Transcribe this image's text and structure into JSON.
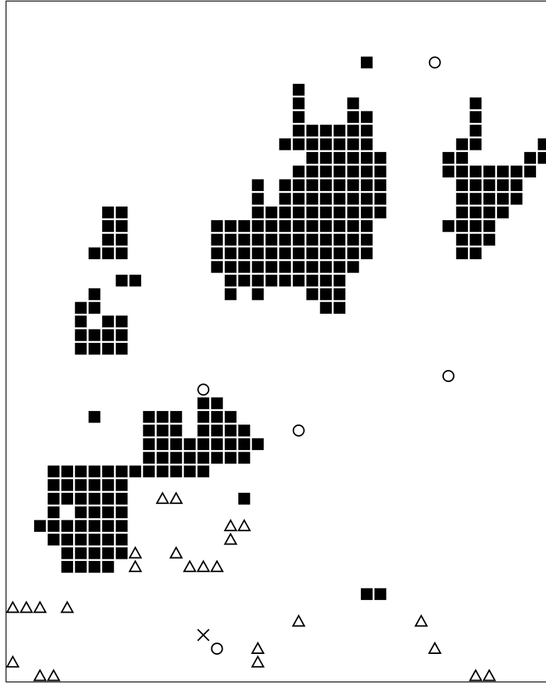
{
  "chart_data": {
    "type": "scatter",
    "title": "",
    "xlabel": "",
    "ylabel": "",
    "grid": false,
    "legend": "none",
    "xlim": [
      0,
      40
    ],
    "ylim": [
      0,
      50
    ],
    "series": [
      {
        "marker": "square",
        "color": "#000000",
        "points": [
          [
            26,
            45
          ],
          [
            21,
            43
          ],
          [
            21,
            42
          ],
          [
            25,
            42
          ],
          [
            34,
            42
          ],
          [
            21,
            41
          ],
          [
            25,
            41
          ],
          [
            26,
            41
          ],
          [
            34,
            41
          ],
          [
            21,
            40
          ],
          [
            22,
            40
          ],
          [
            23,
            40
          ],
          [
            24,
            40
          ],
          [
            25,
            40
          ],
          [
            26,
            40
          ],
          [
            34,
            40
          ],
          [
            20,
            39
          ],
          [
            21,
            39
          ],
          [
            22,
            39
          ],
          [
            23,
            39
          ],
          [
            24,
            39
          ],
          [
            25,
            39
          ],
          [
            26,
            39
          ],
          [
            33,
            39
          ],
          [
            34,
            39
          ],
          [
            39,
            39
          ],
          [
            22,
            38
          ],
          [
            23,
            38
          ],
          [
            24,
            38
          ],
          [
            25,
            38
          ],
          [
            26,
            38
          ],
          [
            27,
            38
          ],
          [
            32,
            38
          ],
          [
            33,
            38
          ],
          [
            38,
            38
          ],
          [
            39,
            38
          ],
          [
            21,
            37
          ],
          [
            22,
            37
          ],
          [
            23,
            37
          ],
          [
            24,
            37
          ],
          [
            25,
            37
          ],
          [
            26,
            37
          ],
          [
            27,
            37
          ],
          [
            32,
            37
          ],
          [
            33,
            37
          ],
          [
            34,
            37
          ],
          [
            35,
            37
          ],
          [
            36,
            37
          ],
          [
            37,
            37
          ],
          [
            38,
            37
          ],
          [
            18,
            36
          ],
          [
            20,
            36
          ],
          [
            21,
            36
          ],
          [
            22,
            36
          ],
          [
            23,
            36
          ],
          [
            24,
            36
          ],
          [
            25,
            36
          ],
          [
            26,
            36
          ],
          [
            27,
            36
          ],
          [
            33,
            36
          ],
          [
            34,
            36
          ],
          [
            35,
            36
          ],
          [
            36,
            36
          ],
          [
            37,
            36
          ],
          [
            18,
            35
          ],
          [
            20,
            35
          ],
          [
            21,
            35
          ],
          [
            22,
            35
          ],
          [
            23,
            35
          ],
          [
            24,
            35
          ],
          [
            25,
            35
          ],
          [
            26,
            35
          ],
          [
            27,
            35
          ],
          [
            33,
            35
          ],
          [
            34,
            35
          ],
          [
            35,
            35
          ],
          [
            36,
            35
          ],
          [
            37,
            35
          ],
          [
            7,
            34
          ],
          [
            8,
            34
          ],
          [
            18,
            34
          ],
          [
            19,
            34
          ],
          [
            20,
            34
          ],
          [
            21,
            34
          ],
          [
            22,
            34
          ],
          [
            23,
            34
          ],
          [
            24,
            34
          ],
          [
            25,
            34
          ],
          [
            26,
            34
          ],
          [
            27,
            34
          ],
          [
            33,
            34
          ],
          [
            34,
            34
          ],
          [
            35,
            34
          ],
          [
            36,
            34
          ],
          [
            7,
            33
          ],
          [
            8,
            33
          ],
          [
            15,
            33
          ],
          [
            16,
            33
          ],
          [
            17,
            33
          ],
          [
            18,
            33
          ],
          [
            19,
            33
          ],
          [
            20,
            33
          ],
          [
            21,
            33
          ],
          [
            22,
            33
          ],
          [
            23,
            33
          ],
          [
            24,
            33
          ],
          [
            25,
            33
          ],
          [
            26,
            33
          ],
          [
            32,
            33
          ],
          [
            33,
            33
          ],
          [
            34,
            33
          ],
          [
            35,
            33
          ],
          [
            7,
            32
          ],
          [
            8,
            32
          ],
          [
            15,
            32
          ],
          [
            16,
            32
          ],
          [
            17,
            32
          ],
          [
            18,
            32
          ],
          [
            19,
            32
          ],
          [
            20,
            32
          ],
          [
            21,
            32
          ],
          [
            22,
            32
          ],
          [
            23,
            32
          ],
          [
            24,
            32
          ],
          [
            25,
            32
          ],
          [
            26,
            32
          ],
          [
            33,
            32
          ],
          [
            34,
            32
          ],
          [
            35,
            32
          ],
          [
            6,
            31
          ],
          [
            7,
            31
          ],
          [
            8,
            31
          ],
          [
            15,
            31
          ],
          [
            16,
            31
          ],
          [
            17,
            31
          ],
          [
            18,
            31
          ],
          [
            19,
            31
          ],
          [
            20,
            31
          ],
          [
            21,
            31
          ],
          [
            22,
            31
          ],
          [
            23,
            31
          ],
          [
            24,
            31
          ],
          [
            25,
            31
          ],
          [
            26,
            31
          ],
          [
            33,
            31
          ],
          [
            34,
            31
          ],
          [
            15,
            30
          ],
          [
            16,
            30
          ],
          [
            17,
            30
          ],
          [
            18,
            30
          ],
          [
            19,
            30
          ],
          [
            20,
            30
          ],
          [
            21,
            30
          ],
          [
            22,
            30
          ],
          [
            23,
            30
          ],
          [
            24,
            30
          ],
          [
            25,
            30
          ],
          [
            8,
            29
          ],
          [
            9,
            29
          ],
          [
            16,
            29
          ],
          [
            17,
            29
          ],
          [
            18,
            29
          ],
          [
            19,
            29
          ],
          [
            20,
            29
          ],
          [
            21,
            29
          ],
          [
            22,
            29
          ],
          [
            23,
            29
          ],
          [
            24,
            29
          ],
          [
            6,
            28
          ],
          [
            16,
            28
          ],
          [
            18,
            28
          ],
          [
            22,
            28
          ],
          [
            23,
            28
          ],
          [
            24,
            28
          ],
          [
            5,
            27
          ],
          [
            6,
            27
          ],
          [
            23,
            27
          ],
          [
            24,
            27
          ],
          [
            5,
            26
          ],
          [
            7,
            26
          ],
          [
            8,
            26
          ],
          [
            5,
            25
          ],
          [
            6,
            25
          ],
          [
            7,
            25
          ],
          [
            8,
            25
          ],
          [
            5,
            24
          ],
          [
            6,
            24
          ],
          [
            7,
            24
          ],
          [
            8,
            24
          ],
          [
            14,
            20
          ],
          [
            15,
            20
          ],
          [
            6,
            19
          ],
          [
            10,
            19
          ],
          [
            11,
            19
          ],
          [
            12,
            19
          ],
          [
            14,
            19
          ],
          [
            15,
            19
          ],
          [
            16,
            19
          ],
          [
            10,
            18
          ],
          [
            11,
            18
          ],
          [
            12,
            18
          ],
          [
            14,
            18
          ],
          [
            15,
            18
          ],
          [
            16,
            18
          ],
          [
            17,
            18
          ],
          [
            10,
            17
          ],
          [
            11,
            17
          ],
          [
            12,
            17
          ],
          [
            13,
            17
          ],
          [
            14,
            17
          ],
          [
            15,
            17
          ],
          [
            16,
            17
          ],
          [
            17,
            17
          ],
          [
            18,
            17
          ],
          [
            10,
            16
          ],
          [
            11,
            16
          ],
          [
            12,
            16
          ],
          [
            13,
            16
          ],
          [
            14,
            16
          ],
          [
            15,
            16
          ],
          [
            16,
            16
          ],
          [
            17,
            16
          ],
          [
            3,
            15
          ],
          [
            4,
            15
          ],
          [
            5,
            15
          ],
          [
            6,
            15
          ],
          [
            7,
            15
          ],
          [
            8,
            15
          ],
          [
            9,
            15
          ],
          [
            10,
            15
          ],
          [
            11,
            15
          ],
          [
            12,
            15
          ],
          [
            13,
            15
          ],
          [
            14,
            15
          ],
          [
            3,
            14
          ],
          [
            4,
            14
          ],
          [
            5,
            14
          ],
          [
            6,
            14
          ],
          [
            7,
            14
          ],
          [
            8,
            14
          ],
          [
            3,
            13
          ],
          [
            4,
            13
          ],
          [
            5,
            13
          ],
          [
            6,
            13
          ],
          [
            7,
            13
          ],
          [
            8,
            13
          ],
          [
            17,
            13
          ],
          [
            3,
            12
          ],
          [
            5,
            12
          ],
          [
            6,
            12
          ],
          [
            7,
            12
          ],
          [
            8,
            12
          ],
          [
            2,
            11
          ],
          [
            3,
            11
          ],
          [
            4,
            11
          ],
          [
            5,
            11
          ],
          [
            6,
            11
          ],
          [
            7,
            11
          ],
          [
            8,
            11
          ],
          [
            3,
            10
          ],
          [
            4,
            10
          ],
          [
            5,
            10
          ],
          [
            6,
            10
          ],
          [
            7,
            10
          ],
          [
            8,
            10
          ],
          [
            4,
            9
          ],
          [
            5,
            9
          ],
          [
            6,
            9
          ],
          [
            7,
            9
          ],
          [
            8,
            9
          ],
          [
            4,
            8
          ],
          [
            5,
            8
          ],
          [
            6,
            8
          ],
          [
            7,
            8
          ],
          [
            26,
            6
          ],
          [
            27,
            6
          ]
        ]
      },
      {
        "marker": "circle",
        "color": "#000000",
        "points": [
          [
            31,
            45
          ],
          [
            32,
            22
          ],
          [
            14,
            21
          ],
          [
            21,
            18
          ],
          [
            15,
            2
          ]
        ]
      },
      {
        "marker": "triangle",
        "color": "#000000",
        "points": [
          [
            11,
            13
          ],
          [
            12,
            13
          ],
          [
            16,
            11
          ],
          [
            17,
            11
          ],
          [
            16,
            10
          ],
          [
            9,
            9
          ],
          [
            12,
            9
          ],
          [
            9,
            8
          ],
          [
            13,
            8
          ],
          [
            14,
            8
          ],
          [
            15,
            8
          ],
          [
            0,
            5
          ],
          [
            1,
            5
          ],
          [
            2,
            5
          ],
          [
            4,
            5
          ],
          [
            21,
            4
          ],
          [
            30,
            4
          ],
          [
            18,
            2
          ],
          [
            31,
            2
          ],
          [
            0,
            1
          ],
          [
            18,
            1
          ],
          [
            2,
            0
          ],
          [
            3,
            0
          ],
          [
            34,
            0
          ],
          [
            35,
            0
          ]
        ]
      },
      {
        "marker": "cross",
        "color": "#000000",
        "points": [
          [
            14,
            3
          ]
        ]
      }
    ]
  }
}
